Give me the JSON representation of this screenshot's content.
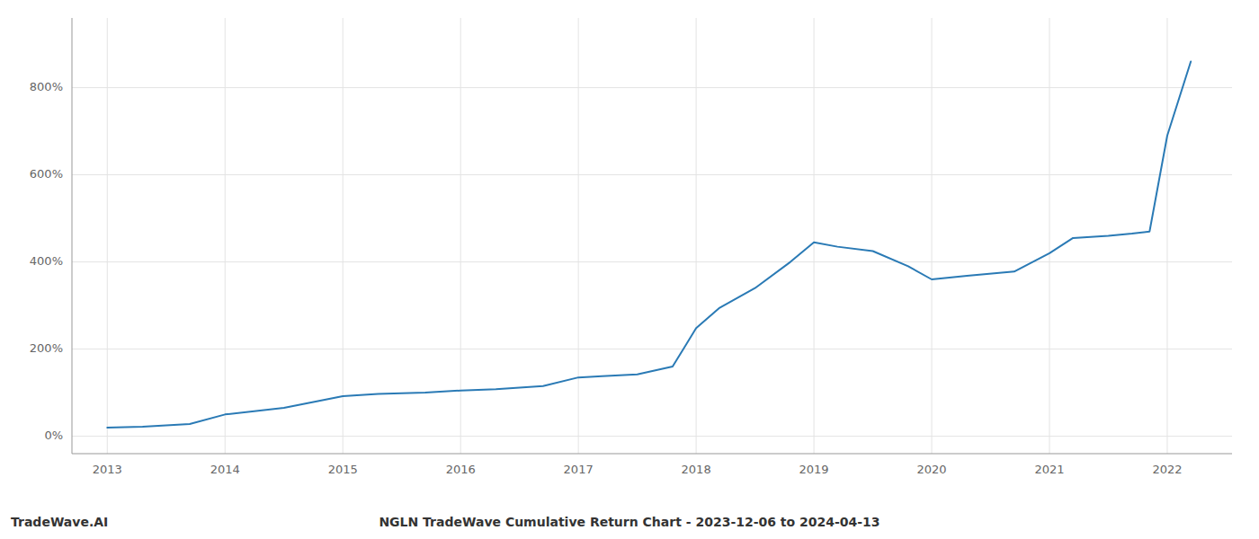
{
  "chart_data": {
    "type": "line",
    "title": "NGLN TradeWave Cumulative Return Chart - 2023-12-06 to 2024-04-13",
    "annotations": [
      "TradeWave.AI"
    ],
    "color": "#2a7ab5",
    "x": [
      2013.0,
      2013.3,
      2013.7,
      2014.0,
      2014.5,
      2015.0,
      2015.3,
      2015.7,
      2016.0,
      2016.3,
      2016.7,
      2017.0,
      2017.2,
      2017.5,
      2017.8,
      2018.0,
      2018.2,
      2018.5,
      2018.8,
      2019.0,
      2019.2,
      2019.5,
      2019.8,
      2020.0,
      2020.3,
      2020.7,
      2021.0,
      2021.2,
      2021.5,
      2021.7,
      2021.85,
      2022.0,
      2022.2
    ],
    "values": [
      20,
      22,
      28,
      50,
      65,
      92,
      97,
      100,
      105,
      108,
      115,
      135,
      138,
      142,
      160,
      248,
      295,
      340,
      400,
      445,
      435,
      425,
      390,
      360,
      368,
      378,
      420,
      455,
      460,
      465,
      470,
      690,
      860
    ],
    "xlim": [
      2012.7,
      2022.55
    ],
    "xticks": [
      2013,
      2014,
      2015,
      2016,
      2017,
      2018,
      2019,
      2020,
      2021,
      2022
    ],
    "ylim": [
      -40,
      960
    ],
    "yticks": [
      {
        "value": 0,
        "label": "0%"
      },
      {
        "value": 200,
        "label": "200%"
      },
      {
        "value": 400,
        "label": "400%"
      },
      {
        "value": 600,
        "label": "600%"
      },
      {
        "value": 800,
        "label": "800%"
      }
    ],
    "grid": true
  }
}
